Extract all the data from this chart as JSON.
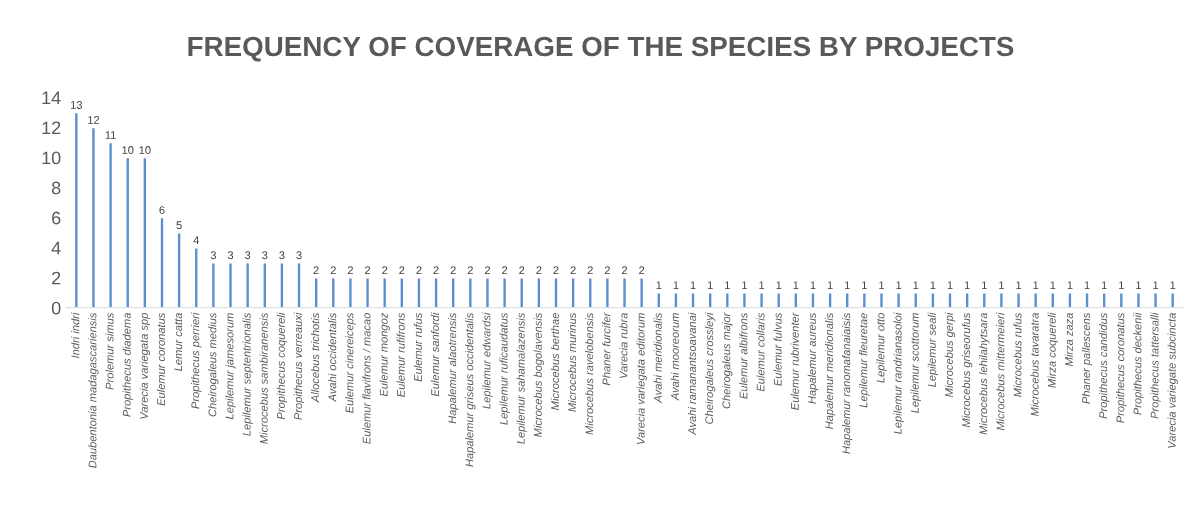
{
  "chart_data": {
    "type": "bar",
    "title": "FREQUENCY OF COVERAGE OF THE SPECIES BY PROJECTS",
    "categories": [
      "Indri indri",
      "Daubentonia madagascariensis",
      "Prolemur simus",
      "Propithecus diadema",
      "Varecia variegata spp",
      "Eulemur coronatus",
      "Lemur catta",
      "Propithecus perrieri",
      "Cheirogaleus medius",
      "Lepilemur jamesorum",
      "Lepilemur septentrionalis",
      "Microcebus sambiranensis",
      "Propithecus coquereli",
      "Propithecus verreauxi",
      "Allocebus trichotis",
      "Avahi occidentalis",
      "Eulemur cinereiceps",
      "Eulemur flavifrons / macao",
      "Eulemur mongoz",
      "Eulemur rufifrons",
      "Eulemur rufus",
      "Eulemur sanfordi",
      "Hapalemur alaotrensis",
      "Hapalemur griseus occidentalis",
      "Lepilemur edwardsi",
      "Lepilemur ruficaudatus",
      "Lepilemur sahamalazensis",
      "Microcebus bogolavensis",
      "Microcebus berthae",
      "Microcebus murinus",
      "Microcebus ravelobensis",
      "Phaner furcifer",
      "Varecia rubra",
      "Varecia variegata editorum",
      "Avahi meridionalis",
      "Avahi mooreorum",
      "Avahi ramanantsoavanai",
      "Cheirogaleus crossleyi",
      "Cheirogaleus major",
      "Eulemur albifrons",
      "Eulemur collaris",
      "Eulemur fulvus",
      "Eulemur rubriventer",
      "Hapalemur aureus",
      "Hapalemur meridionalis",
      "Hapalemur ranomafanaiaisis",
      "Lepilemur fleuretae",
      "Lepilemur otto",
      "Lepilemur randrianasoloi",
      "Lepilemur scottorum",
      "Lepilemur seali",
      "Microcebus gerpi",
      "Microcebus griseorufus",
      "Microcebus lehilahytsara",
      "Microcebus mittermeieri",
      "Microcebus rufus",
      "Microcebus tavaratra",
      "Mirza coquereli",
      "Mirza zaza",
      "Phaner pallescens",
      "Propithecus candidus",
      "Propithecus coronatus",
      "Propithecus deckenii",
      "Propithecus tattersalli",
      "Varecia variegate subcincta"
    ],
    "values": [
      13,
      12,
      11,
      10,
      10,
      6,
      5,
      4,
      3,
      3,
      3,
      3,
      3,
      3,
      2,
      2,
      2,
      2,
      2,
      2,
      2,
      2,
      2,
      2,
      2,
      2,
      2,
      2,
      2,
      2,
      2,
      2,
      2,
      2,
      1,
      1,
      1,
      1,
      1,
      1,
      1,
      1,
      1,
      1,
      1,
      1,
      1,
      1,
      1,
      1,
      1,
      1,
      1,
      1,
      1,
      1,
      1,
      1,
      1,
      1,
      1,
      1,
      1,
      1,
      1
    ],
    "color": "#5b8fd0",
    "ylim": [
      0,
      14
    ],
    "yticks": [
      0,
      2,
      4,
      6,
      8,
      10,
      12,
      14
    ],
    "data_labels": true
  }
}
